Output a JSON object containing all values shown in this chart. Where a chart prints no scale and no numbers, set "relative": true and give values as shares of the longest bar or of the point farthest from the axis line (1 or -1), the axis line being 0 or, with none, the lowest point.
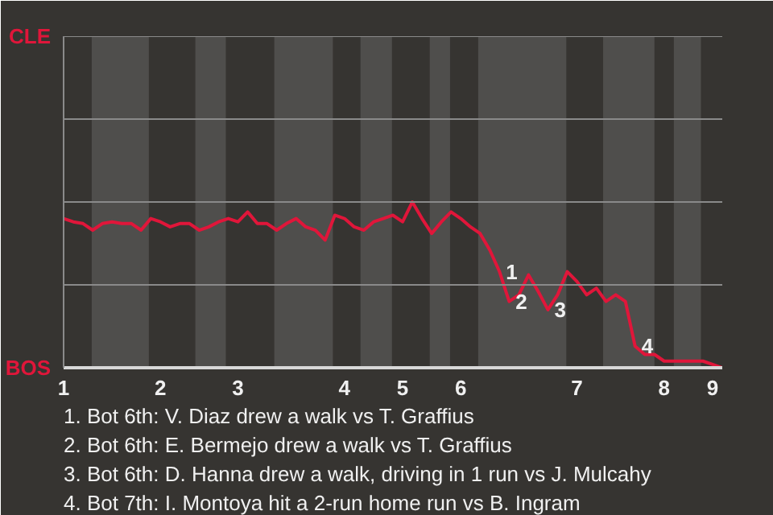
{
  "chart_data": {
    "type": "line",
    "relative": true,
    "categories": [
      "1",
      null,
      null,
      null,
      null,
      null,
      null,
      null,
      null,
      null,
      "2",
      null,
      null,
      null,
      null,
      null,
      null,
      null,
      "3",
      null,
      null,
      null,
      null,
      null,
      null,
      null,
      null,
      null,
      null,
      "4",
      null,
      null,
      null,
      null,
      null,
      "5",
      null,
      null,
      null,
      null,
      null,
      "6",
      null,
      null,
      null,
      null,
      null,
      null,
      null,
      null,
      null,
      null,
      null,
      "7",
      null,
      null,
      null,
      null,
      null,
      null,
      null,
      null,
      "8",
      null,
      null,
      null,
      null,
      "9",
      null
    ],
    "series": [
      {
        "color": "#e0163a",
        "values": [
          0.9,
          0.88,
          0.87,
          0.83,
          0.87,
          0.88,
          0.87,
          0.87,
          0.83,
          0.9,
          0.88,
          0.85,
          0.87,
          0.87,
          0.83,
          0.85,
          0.88,
          0.9,
          0.88,
          0.94,
          0.87,
          0.87,
          0.83,
          0.87,
          0.9,
          0.85,
          0.83,
          0.77,
          0.92,
          0.9,
          0.85,
          0.83,
          0.88,
          0.9,
          0.92,
          0.88,
          1.0,
          0.9,
          0.81,
          0.88,
          0.94,
          0.9,
          0.85,
          0.81,
          0.71,
          0.58,
          0.4,
          0.44,
          0.56,
          0.46,
          0.35,
          0.44,
          0.58,
          0.52,
          0.44,
          0.48,
          0.4,
          0.44,
          0.4,
          0.13,
          0.08,
          0.08,
          0.04,
          0.04,
          0.04,
          0.04,
          0.04,
          0.02,
          0.0
        ]
      }
    ],
    "ref_lines": [
      {
        "axis": "y",
        "value": 0.5,
        "color": "#8a8a8a"
      },
      {
        "axis": "y",
        "value": 1.0,
        "color": "#8a8a8a"
      },
      {
        "axis": "y",
        "value": 1.5,
        "color": "#8a8a8a"
      },
      {
        "axis": "y",
        "value": 2.0,
        "color": "#8a8a8a"
      }
    ],
    "marker": "none",
    "line_style": "solid",
    "annotations": [
      "CLE",
      "BOS",
      "1",
      "2",
      "3",
      "4",
      "1. Bot 6th: V. Diaz drew a walk vs T. Graffius",
      "2. Bot 6th: E. Bermejo drew a walk vs T. Graffius",
      "3. Bot 6th: D. Hanna drew a walk, driving in 1 run vs J. Mulcahy",
      "4. Bot 7th: I. Montoya hit a 2-run home run vs B. Ingram"
    ]
  }
}
